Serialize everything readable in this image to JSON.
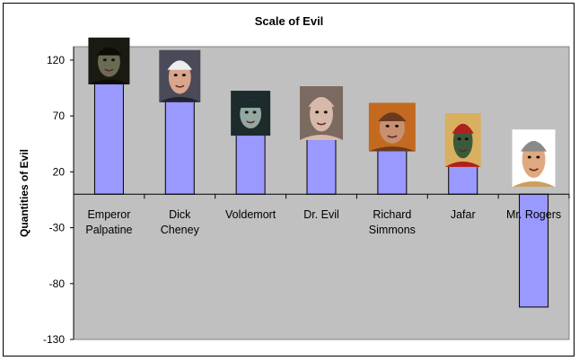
{
  "chart_data": {
    "type": "bar",
    "title": "Scale of Evil",
    "xlabel": "",
    "ylabel": "Quantities of Evil",
    "categories": [
      "Emperor Palpatine",
      "Dick Cheney",
      "Voldemort",
      "Dr. Evil",
      "Richard Simmons",
      "Jafar",
      "Mr. Rogers"
    ],
    "category_lines": [
      [
        "Emperor",
        "Palpatine"
      ],
      [
        "Dick",
        "Cheney"
      ],
      [
        "Voldemort"
      ],
      [
        "Dr. Evil"
      ],
      [
        "Richard",
        "Simmons"
      ],
      [
        "Jafar"
      ],
      [
        "Mr. Rogers"
      ]
    ],
    "values": [
      100,
      84,
      54,
      50,
      40,
      26,
      -101
    ],
    "ylim": [
      -130,
      130
    ],
    "yticks": [
      120,
      70,
      20,
      -30,
      -80,
      -130
    ],
    "grid": false,
    "plot_background": "#c0c0c0",
    "bar_color": "#9999ff",
    "bar_images": [
      "dark-hooded-portrait",
      "man-portrait",
      "pale-villain-portrait",
      "bald-villain-portrait",
      "curly-haired-man-portrait",
      "cartoon-vizier-portrait",
      "smiling-man-portrait"
    ]
  }
}
